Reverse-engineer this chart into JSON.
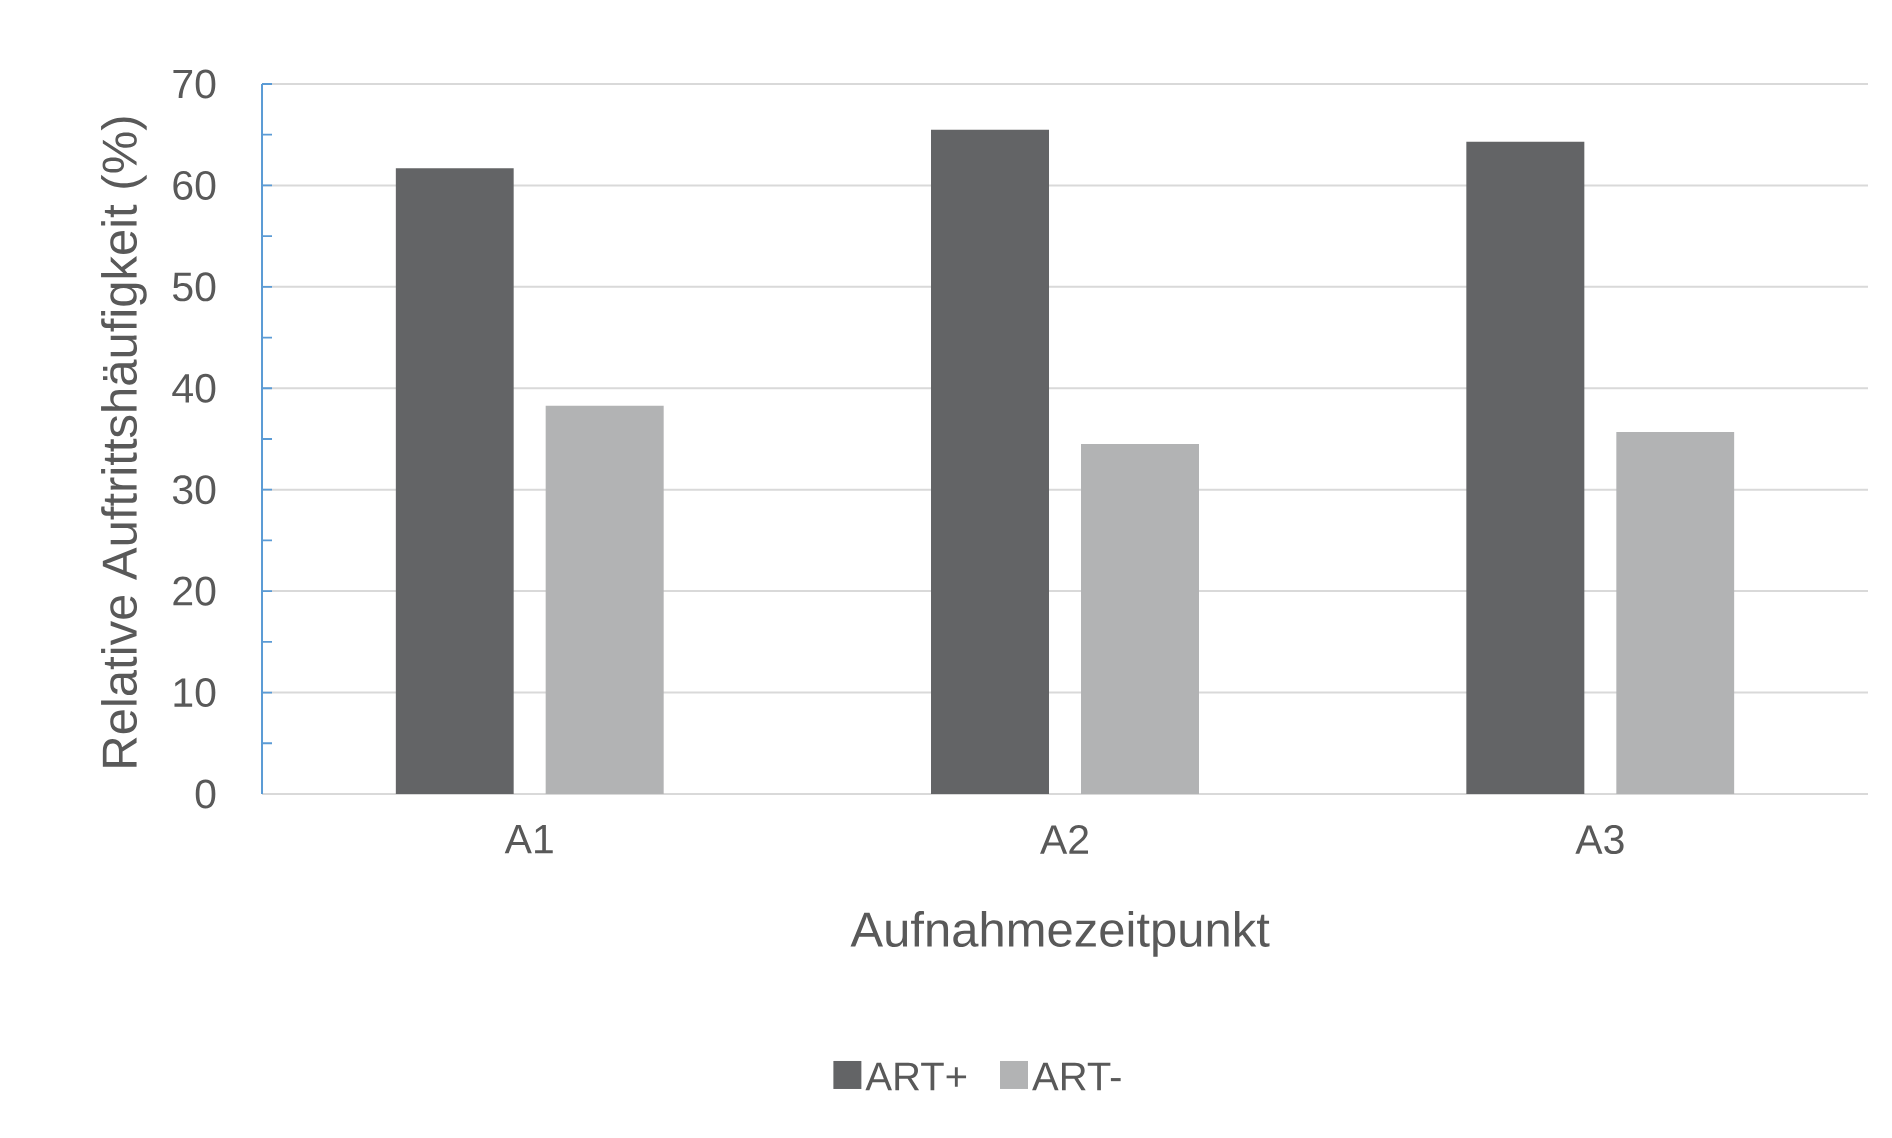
{
  "chart_data": {
    "type": "bar",
    "xlabel": "Aufnahmezeitpunkt",
    "ylabel": "Relative Auftrittshäufigkeit (%)",
    "categories": [
      "A1",
      "A2",
      "A3"
    ],
    "series": [
      {
        "name": "ART+",
        "color": "#636466",
        "values": [
          61.7,
          65.5,
          64.3
        ]
      },
      {
        "name": "ART-",
        "color": "#b2b3b4",
        "values": [
          38.3,
          34.5,
          35.7
        ]
      }
    ],
    "ylim": [
      0,
      70
    ],
    "yticks": [
      0,
      {
        "value": 5,
        "label": null
      },
      10,
      {
        "value": 15,
        "label": null
      },
      20,
      {
        "value": 25,
        "label": null
      },
      30,
      {
        "value": 35,
        "label": null
      },
      40,
      {
        "value": 45,
        "label": null
      },
      50,
      {
        "value": 55,
        "label": null
      },
      60,
      {
        "value": 65,
        "label": null
      },
      70
    ],
    "grid": "y",
    "legend": "bottom"
  }
}
